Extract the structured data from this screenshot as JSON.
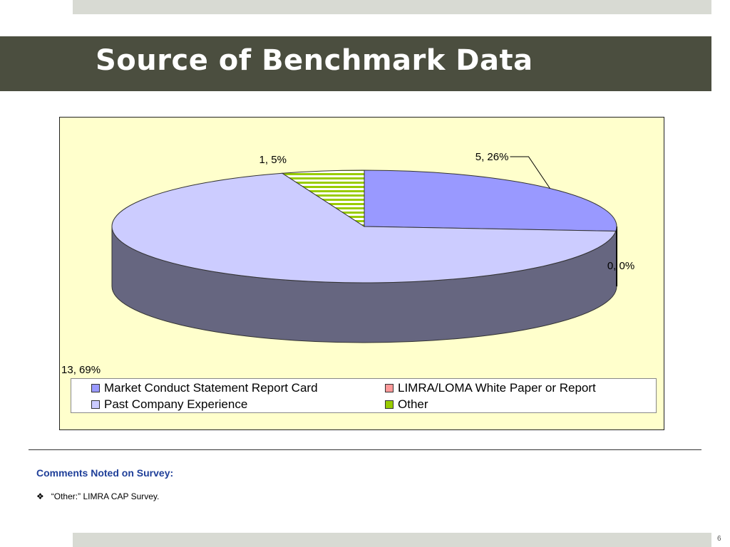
{
  "slide": {
    "title": "Source of Benchmark Data",
    "page_number": "6"
  },
  "comments": {
    "heading": "Comments Noted on Survey:",
    "bullet_glyph": "❖",
    "items": [
      "“Other:” LIMRA CAP Survey."
    ]
  },
  "chart_data": {
    "type": "pie",
    "three_d": true,
    "categories": [
      "Market Conduct Statement Report Card",
      "LIMRA/LOMA White Paper or Report",
      "Past Company Experience",
      "Other"
    ],
    "values": [
      5,
      0,
      13,
      1
    ],
    "percentages": [
      26,
      0,
      69,
      5
    ],
    "data_labels": [
      "5, 26%",
      "0, 0%",
      "13, 69%",
      "1, 5%"
    ],
    "colors": {
      "Market Conduct Statement Report Card": "#9999ff",
      "LIMRA/LOMA White Paper or Report": "#ff9999",
      "Past Company Experience": "#ccccff",
      "Other": "#99cc00",
      "side_shade": "#666680",
      "plot_background": "#ffffcc"
    },
    "legend": {
      "placement": "bottom",
      "entries": [
        "Market Conduct Statement Report Card",
        "LIMRA/LOMA White Paper or Report",
        "Past Company Experience",
        "Other"
      ]
    }
  }
}
